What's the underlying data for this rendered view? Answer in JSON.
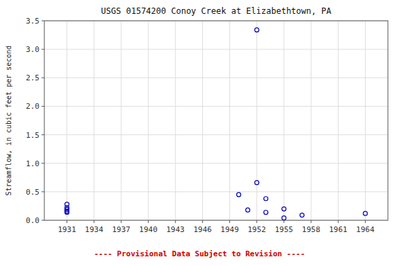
{
  "chart_data": {
    "type": "scatter",
    "title": "USGS 01574200 Conoy Creek at Elizabethtown, PA",
    "y_label": "Streamflow, in cubic feet per second",
    "x": [
      1931,
      1931,
      1931,
      1931,
      1931,
      1950,
      1951,
      1952,
      1952,
      1953,
      1953,
      1955,
      1955,
      1957,
      1964
    ],
    "values": [
      0.28,
      0.22,
      0.19,
      0.16,
      0.14,
      0.45,
      0.18,
      3.34,
      0.66,
      0.38,
      0.14,
      0.2,
      0.04,
      0.09,
      0.12
    ],
    "color": "#0000bb",
    "marker": "circle",
    "xlim": [
      1928.5,
      1966.5
    ],
    "ylim": [
      0.0,
      3.5
    ],
    "xticks": [
      1931,
      1934,
      1937,
      1940,
      1943,
      1946,
      1949,
      1952,
      1955,
      1958,
      1961,
      1964
    ],
    "yticks": [
      {
        "value": 0.0,
        "label": "0.0"
      },
      0.5,
      {
        "value": 1.0,
        "label": "1.0"
      },
      1.5,
      {
        "value": 2.0,
        "label": "2.0"
      },
      2.5,
      {
        "value": 3.0,
        "label": "3.0"
      },
      3.5
    ],
    "grid": true,
    "annotations": [
      {
        "text": "---- Provisional Data Subject to Revision ----",
        "color": "#cc0000"
      }
    ]
  }
}
